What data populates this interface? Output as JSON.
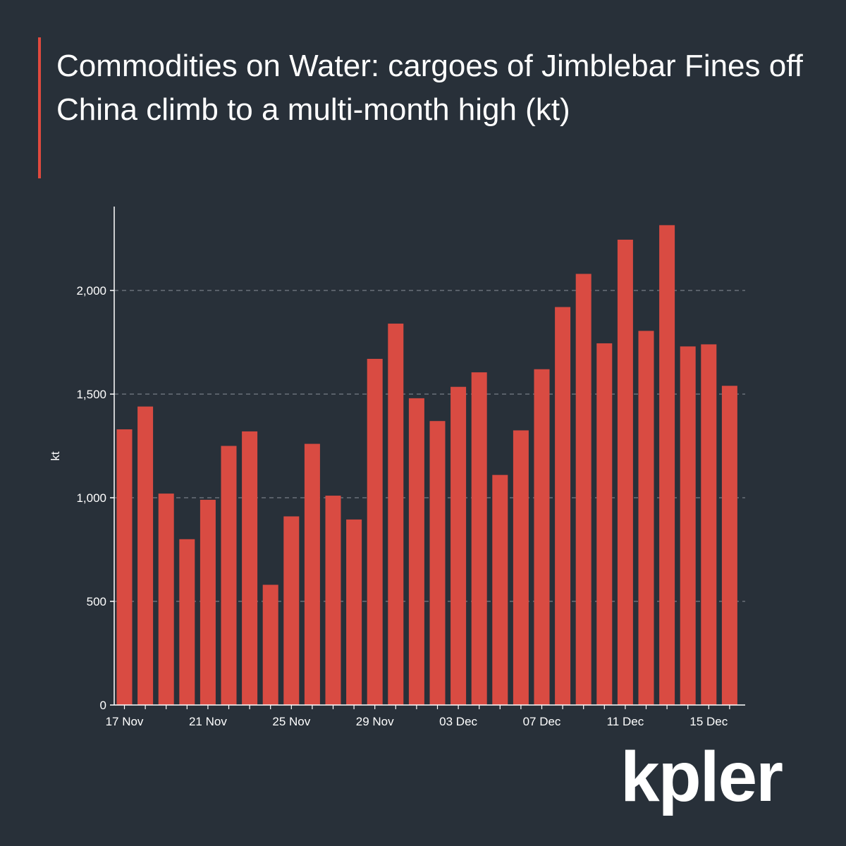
{
  "brand": {
    "logo_text": "kpler",
    "accent_color": "#e0493e",
    "bar_color": "#d94b42",
    "background_color": "#283039"
  },
  "chart_data": {
    "type": "bar",
    "title": "Commodities on Water: cargoes of Jimblebar Fines off China climb to a multi-month high (kt)",
    "xlabel": "",
    "ylabel": "kt",
    "ylim": [
      0,
      2400
    ],
    "yticks": [
      0,
      500,
      1000,
      1500,
      2000
    ],
    "ytick_labels": [
      "0",
      "500",
      "1,000",
      "1,500",
      "2,000"
    ],
    "grid": "horizontal dashed",
    "xtick_labels": [
      "17 Nov",
      "21 Nov",
      "25 Nov",
      "29 Nov",
      "03 Dec",
      "07 Dec",
      "11 Dec",
      "15 Dec"
    ],
    "xtick_positions": [
      "17 Nov",
      "21 Nov",
      "25 Nov",
      "29 Nov",
      "03 Dec",
      "07 Dec",
      "11 Dec",
      "15 Dec"
    ],
    "categories": [
      "17 Nov",
      "18 Nov",
      "19 Nov",
      "20 Nov",
      "21 Nov",
      "22 Nov",
      "23 Nov",
      "24 Nov",
      "25 Nov",
      "26 Nov",
      "27 Nov",
      "28 Nov",
      "29 Nov",
      "30 Nov",
      "01 Dec",
      "02 Dec",
      "03 Dec",
      "04 Dec",
      "05 Dec",
      "06 Dec",
      "07 Dec",
      "08 Dec",
      "09 Dec",
      "10 Dec",
      "11 Dec",
      "12 Dec",
      "13 Dec",
      "14 Dec",
      "15 Dec",
      "16 Dec"
    ],
    "values": [
      1330,
      1440,
      1020,
      800,
      990,
      1250,
      1320,
      580,
      910,
      1260,
      1010,
      895,
      1670,
      1840,
      1480,
      1370,
      1535,
      1605,
      1110,
      1325,
      1620,
      1920,
      2080,
      1745,
      2245,
      1805,
      2315,
      1730,
      1740,
      1540
    ]
  }
}
